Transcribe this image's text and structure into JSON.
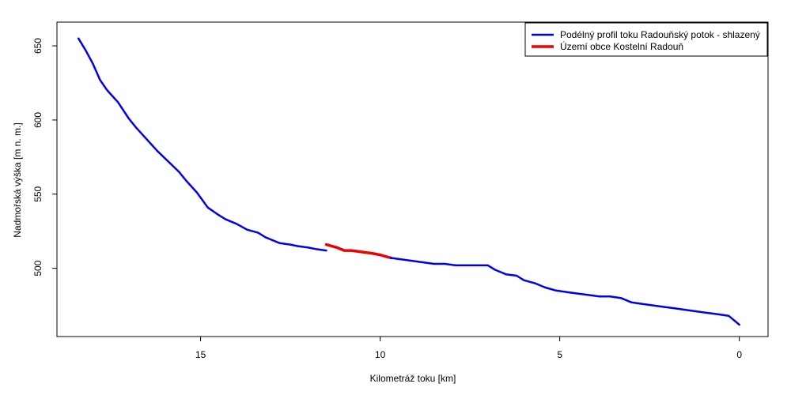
{
  "chart_data": {
    "type": "line",
    "xlabel": "Kilometráž toku [km]",
    "ylabel": "Nadmořská výška [m n. m.]",
    "xlim": [
      19.0,
      -0.8
    ],
    "ylim": [
      454,
      666
    ],
    "x_ticks": [
      15,
      10,
      5,
      0
    ],
    "y_ticks": [
      500,
      550,
      600,
      650
    ],
    "legend_position": "top-right",
    "grid": false,
    "series": [
      {
        "name": "Podélný profil toku Radouňský potok - shlazený",
        "color": "#0000ee",
        "x": [
          18.4,
          18.2,
          18.0,
          17.8,
          17.6,
          17.3,
          17.0,
          16.8,
          16.5,
          16.2,
          15.9,
          15.6,
          15.4,
          15.1,
          14.8,
          14.5,
          14.3,
          14.0,
          13.7,
          13.4,
          13.2,
          13.0,
          12.8,
          12.5,
          12.3,
          12.0,
          11.8,
          11.5
        ],
        "y": [
          655,
          647,
          638,
          627,
          620,
          612,
          601,
          595,
          587,
          579,
          572,
          565,
          559,
          551,
          541,
          536,
          533,
          530,
          526,
          524,
          521,
          519,
          517,
          516,
          515,
          514,
          513,
          512
        ]
      },
      {
        "name": "Území obce Kostelní Radouň",
        "color": "#ee0000",
        "x": [
          11.5,
          11.2,
          11.0,
          10.8,
          10.5,
          10.2,
          10.0,
          9.7
        ],
        "y": [
          516,
          514,
          512,
          512,
          511,
          510,
          509,
          507
        ]
      },
      {
        "name": "",
        "color": "#0000ee",
        "x": [
          9.7,
          9.4,
          9.1,
          8.8,
          8.5,
          8.2,
          7.9,
          7.6,
          7.3,
          7.0,
          6.8,
          6.5,
          6.2,
          6.0,
          5.7,
          5.4,
          5.1,
          4.8,
          4.5,
          4.2,
          3.9,
          3.6,
          3.3,
          3.0,
          2.7,
          2.4,
          2.1,
          1.8,
          1.5,
          1.2,
          0.9,
          0.6,
          0.3,
          0.0
        ],
        "y": [
          507,
          506,
          505,
          504,
          503,
          503,
          502,
          502,
          502,
          502,
          499,
          496,
          495,
          492,
          490,
          487,
          485,
          484,
          483,
          482,
          481,
          481,
          480,
          477,
          476,
          475,
          474,
          473,
          472,
          471,
          470,
          469,
          468,
          462
        ]
      }
    ]
  }
}
